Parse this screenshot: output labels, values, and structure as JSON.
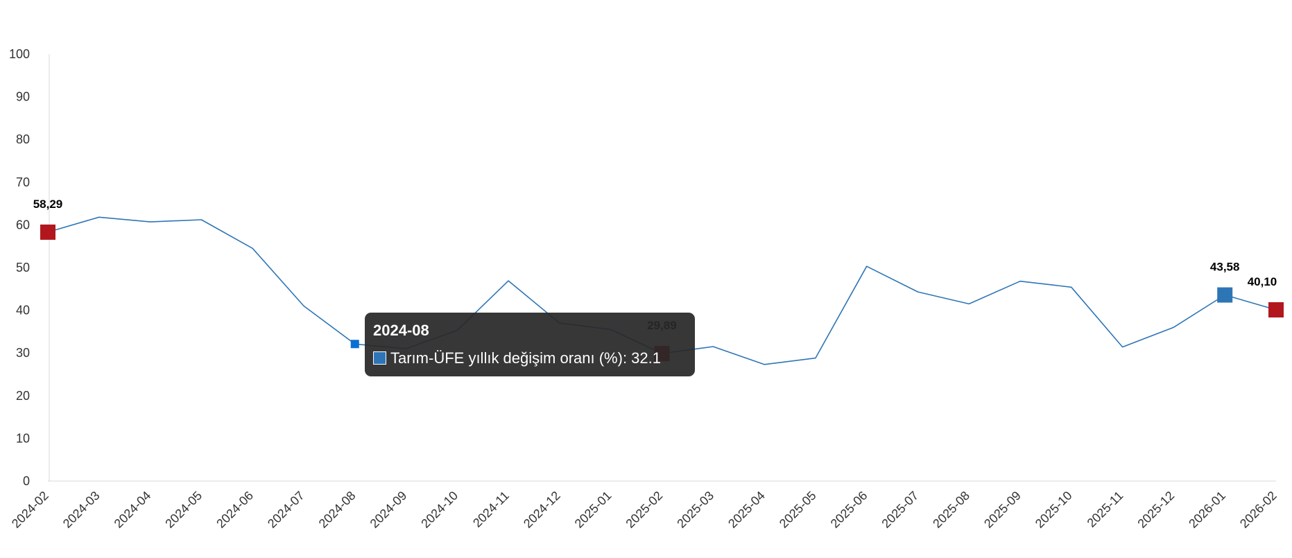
{
  "chart_data": {
    "type": "line",
    "title": "",
    "xlabel": "",
    "ylabel": "",
    "ylim": [
      0,
      100
    ],
    "yticks": [
      "0",
      "10",
      "20",
      "30",
      "40",
      "50",
      "60",
      "70",
      "80",
      "90",
      "100"
    ],
    "grid": false,
    "legend": "none",
    "categories": [
      "2024-02",
      "2024-03",
      "2024-04",
      "2024-05",
      "2024-06",
      "2024-07",
      "2024-08",
      "2024-09",
      "2024-10",
      "2024-11",
      "2024-12",
      "2025-01",
      "2025-02",
      "2025-03",
      "2025-04",
      "2025-05",
      "2025-06",
      "2025-07",
      "2025-08",
      "2025-09",
      "2025-10",
      "2025-11",
      "2025-12",
      "2026-01",
      "2026-02"
    ],
    "series": [
      {
        "name": "Tarım-ÜFE yıllık değişim oranı (%)",
        "color": "#2e75b6",
        "values": [
          58.29,
          61.8,
          60.7,
          61.2,
          54.5,
          41.0,
          32.1,
          31.0,
          35.3,
          46.9,
          37.0,
          35.5,
          29.89,
          31.5,
          27.3,
          28.8,
          50.3,
          44.3,
          41.5,
          46.8,
          45.4,
          31.4,
          36.0,
          43.58,
          40.1
        ]
      }
    ],
    "markers": [
      {
        "index": 0,
        "color": "#b2171e",
        "label": "58,29"
      },
      {
        "index": 12,
        "color": "#b2171e",
        "label": "29,89"
      },
      {
        "index": 23,
        "color": "#2e75b6",
        "label": "43,58"
      },
      {
        "index": 24,
        "color": "#b2171e",
        "label": "40,10"
      }
    ],
    "hover": {
      "index": 6
    }
  },
  "tooltip": {
    "title": "2024-08",
    "row": "Tarım-ÜFE yıllık değişim oranı (%): 32.1",
    "swatch_color": "#2e75b6"
  }
}
